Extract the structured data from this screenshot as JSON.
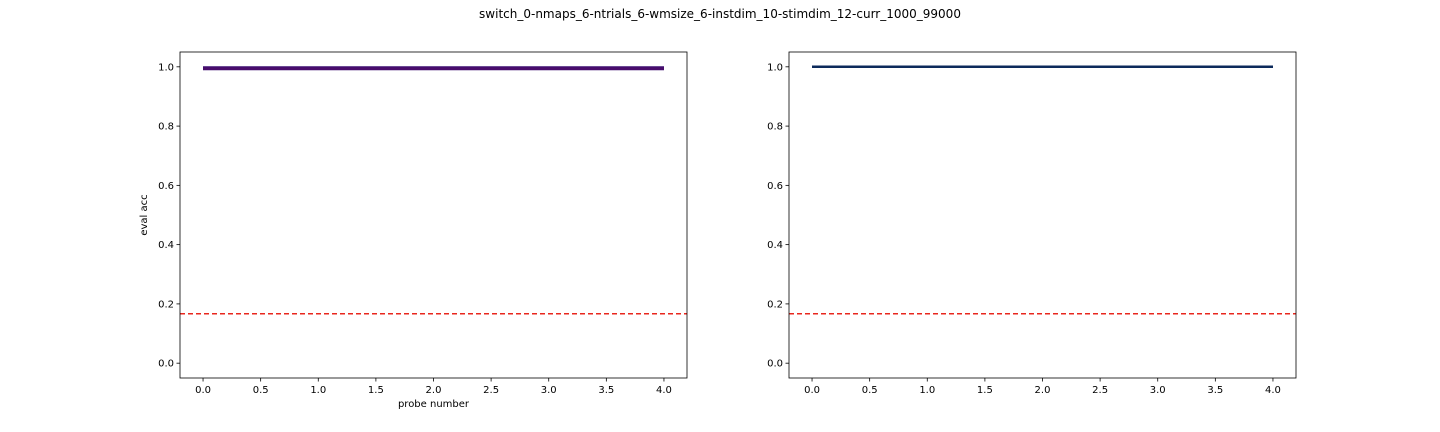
{
  "figure": {
    "title": "switch_0-nmaps_6-ntrials_6-wmsize_6-instdim_10-stimdim_12-curr_1000_99000"
  },
  "chart_data": [
    {
      "type": "line",
      "title": "",
      "xlabel": "probe number",
      "ylabel": "eval acc",
      "xlim": [
        -0.2,
        4.2
      ],
      "ylim": [
        -0.05,
        1.05
      ],
      "xticks": [
        0.0,
        0.5,
        1.0,
        1.5,
        2.0,
        2.5,
        3.0,
        3.5,
        4.0
      ],
      "xtick_labels": [
        "0.0",
        "0.5",
        "1.0",
        "1.5",
        "2.0",
        "2.5",
        "3.0",
        "3.5",
        "4.0"
      ],
      "yticks": [
        0.0,
        0.2,
        0.4,
        0.6,
        0.8,
        1.0
      ],
      "ytick_labels": [
        "0.0",
        "0.2",
        "0.4",
        "0.6",
        "0.8",
        "1.0"
      ],
      "grid": false,
      "series": [
        {
          "x": [
            0,
            1,
            2,
            3,
            4
          ],
          "y": [
            0.995,
            0.995,
            0.995,
            0.995,
            0.995
          ],
          "color": "#3b0f70"
        },
        {
          "x": [
            0,
            1,
            2,
            3,
            4
          ],
          "y": [
            0.994,
            0.994,
            0.994,
            0.994,
            0.994
          ],
          "color": "#4b0c6b"
        }
      ],
      "reference_line": {
        "y": 0.1667,
        "color": "#e8271e",
        "style": "dashed"
      }
    },
    {
      "type": "line",
      "title": "",
      "xlabel": "",
      "ylabel": "",
      "xlim": [
        -0.2,
        4.2
      ],
      "ylim": [
        -0.05,
        1.05
      ],
      "xticks": [
        0.0,
        0.5,
        1.0,
        1.5,
        2.0,
        2.5,
        3.0,
        3.5,
        4.0
      ],
      "xtick_labels": [
        "0.0",
        "0.5",
        "1.0",
        "1.5",
        "2.0",
        "2.5",
        "3.0",
        "3.5",
        "4.0"
      ],
      "yticks": [
        0.0,
        0.2,
        0.4,
        0.6,
        0.8,
        1.0
      ],
      "ytick_labels": [
        "0.0",
        "0.2",
        "0.4",
        "0.6",
        "0.8",
        "1.0"
      ],
      "grid": false,
      "series": [
        {
          "x": [
            0,
            1,
            2,
            3,
            4
          ],
          "y": [
            1.0,
            1.0,
            1.0,
            1.0,
            1.0
          ],
          "color": "#0c2a5b"
        }
      ],
      "reference_line": {
        "y": 0.1667,
        "color": "#e8271e",
        "style": "dashed"
      }
    }
  ]
}
